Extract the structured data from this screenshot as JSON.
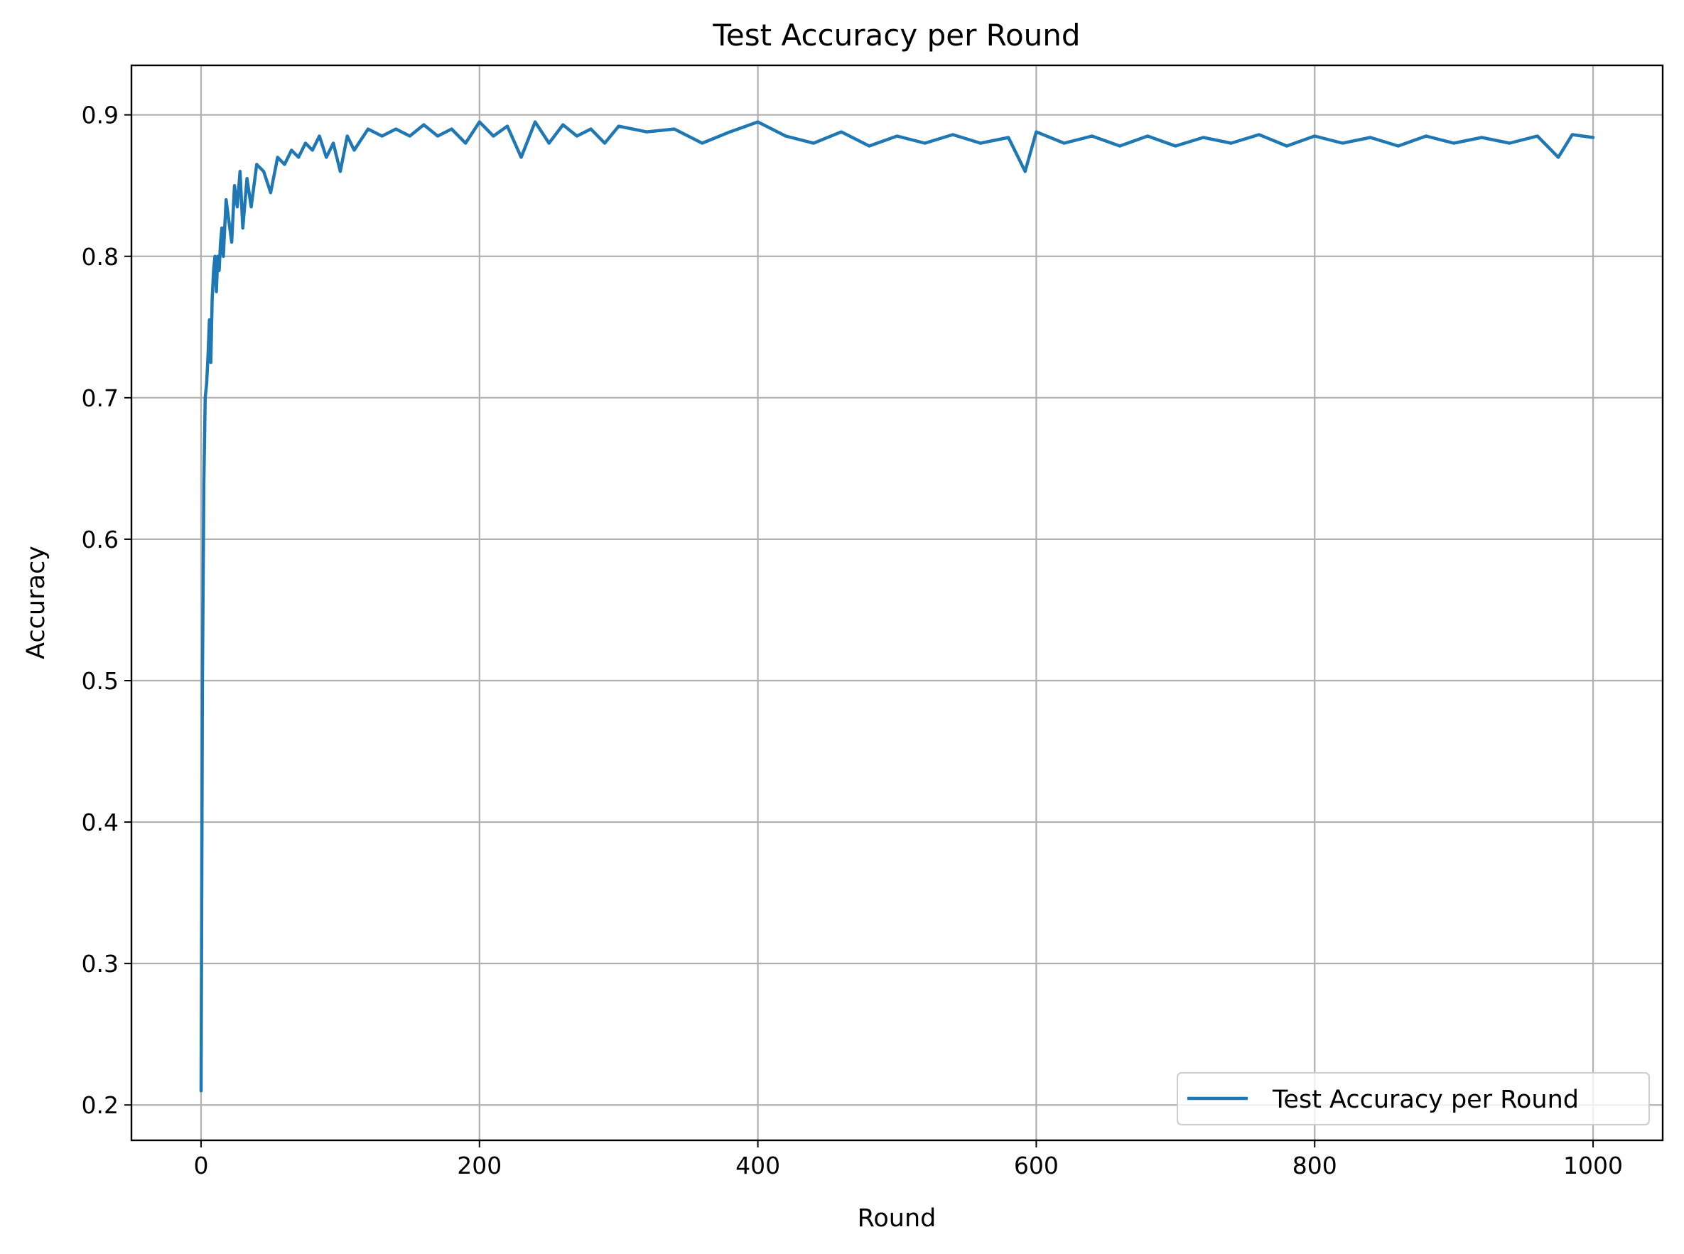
{
  "chart_data": {
    "type": "line",
    "title": "Test Accuracy per Round",
    "xlabel": "Round",
    "ylabel": "Accuracy",
    "xlim": [
      -50,
      1050
    ],
    "ylim": [
      0.175,
      0.935
    ],
    "xticks": [
      0,
      200,
      400,
      600,
      800,
      1000
    ],
    "yticks": [
      0.2,
      0.3,
      0.4,
      0.5,
      0.6,
      0.7,
      0.8,
      0.9
    ],
    "xtick_labels": [
      "0",
      "200",
      "400",
      "600",
      "800",
      "1000"
    ],
    "ytick_labels": [
      "0.2",
      "0.3",
      "0.4",
      "0.5",
      "0.6",
      "0.7",
      "0.8",
      "0.9"
    ],
    "grid": true,
    "legend_position": "lower right",
    "series": [
      {
        "name": "Test Accuracy per Round",
        "color": "#1f77b4",
        "x": [
          0,
          1,
          2,
          3,
          4,
          5,
          6,
          7,
          8,
          9,
          10,
          11,
          12,
          13,
          14,
          15,
          16,
          18,
          20,
          22,
          24,
          26,
          28,
          30,
          33,
          36,
          40,
          45,
          50,
          55,
          60,
          65,
          70,
          75,
          80,
          85,
          90,
          95,
          100,
          105,
          110,
          120,
          130,
          140,
          150,
          160,
          170,
          180,
          190,
          200,
          210,
          220,
          230,
          240,
          250,
          260,
          270,
          280,
          290,
          300,
          320,
          340,
          360,
          380,
          400,
          420,
          440,
          460,
          480,
          500,
          520,
          540,
          560,
          580,
          592,
          600,
          620,
          640,
          660,
          680,
          700,
          720,
          740,
          760,
          780,
          800,
          820,
          840,
          860,
          880,
          900,
          920,
          940,
          960,
          975,
          985,
          1000
        ],
        "y": [
          0.21,
          0.5,
          0.64,
          0.7,
          0.71,
          0.73,
          0.755,
          0.725,
          0.77,
          0.79,
          0.8,
          0.775,
          0.8,
          0.79,
          0.81,
          0.82,
          0.8,
          0.84,
          0.825,
          0.81,
          0.85,
          0.835,
          0.86,
          0.82,
          0.855,
          0.835,
          0.865,
          0.86,
          0.845,
          0.87,
          0.865,
          0.875,
          0.87,
          0.88,
          0.875,
          0.885,
          0.87,
          0.88,
          0.86,
          0.885,
          0.875,
          0.89,
          0.885,
          0.89,
          0.885,
          0.893,
          0.885,
          0.89,
          0.88,
          0.895,
          0.885,
          0.892,
          0.87,
          0.895,
          0.88,
          0.893,
          0.885,
          0.89,
          0.88,
          0.892,
          0.888,
          0.89,
          0.88,
          0.888,
          0.895,
          0.885,
          0.88,
          0.888,
          0.878,
          0.885,
          0.88,
          0.886,
          0.88,
          0.884,
          0.86,
          0.888,
          0.88,
          0.885,
          0.878,
          0.885,
          0.878,
          0.884,
          0.88,
          0.886,
          0.878,
          0.885,
          0.88,
          0.884,
          0.878,
          0.885,
          0.88,
          0.884,
          0.88,
          0.885,
          0.87,
          0.886,
          0.884
        ]
      }
    ]
  }
}
